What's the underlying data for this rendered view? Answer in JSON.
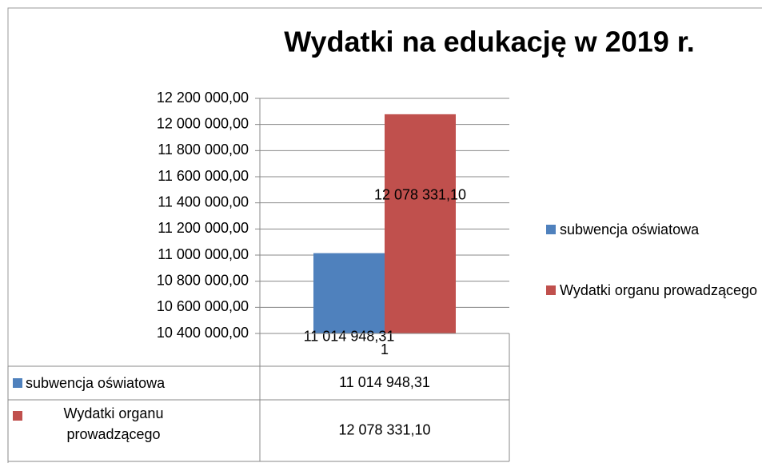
{
  "chart_data": {
    "type": "bar",
    "title": "Wydatki na edukację w 2019 r.",
    "categories": [
      "1"
    ],
    "series": [
      {
        "name": "subwencja oświatowa",
        "color": "#4f81bd",
        "values": [
          11014948.31
        ],
        "value_labels": [
          "11 014 948,31"
        ]
      },
      {
        "name": "Wydatki organu prowadzącego",
        "color": "#c0504d",
        "values": [
          12078331.1
        ],
        "value_labels": [
          "12 078 331,10"
        ]
      }
    ],
    "ylim": [
      10400000,
      12200000
    ],
    "yticks": [
      {
        "value": 10400000,
        "label": "10 400 000,00"
      },
      {
        "value": 10600000,
        "label": "10 600 000,00"
      },
      {
        "value": 10800000,
        "label": "10 800 000,00"
      },
      {
        "value": 11000000,
        "label": "11 000 000,00"
      },
      {
        "value": 11200000,
        "label": "11 200 000,00"
      },
      {
        "value": 11400000,
        "label": "11 400 000,00"
      },
      {
        "value": 11600000,
        "label": "11 600 000,00"
      },
      {
        "value": 11800000,
        "label": "11 800 000,00"
      },
      {
        "value": 12000000,
        "label": "12 000 000,00"
      },
      {
        "value": 12200000,
        "label": "12 200 000,00"
      }
    ],
    "grid": true,
    "legend": "right"
  }
}
